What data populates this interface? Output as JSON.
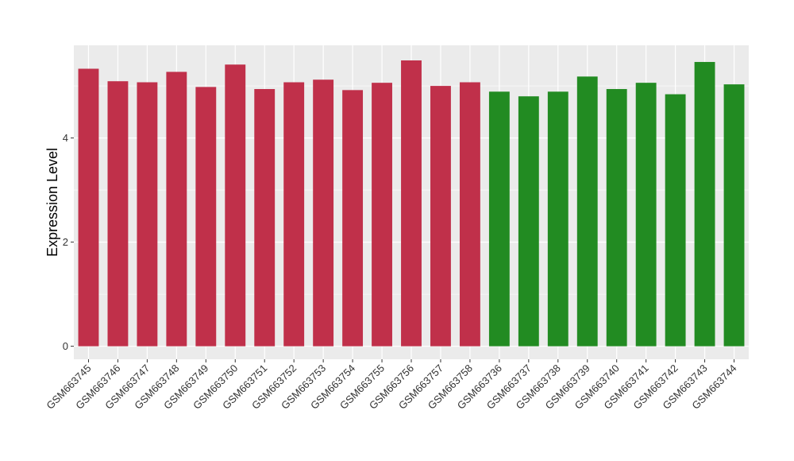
{
  "chart_data": {
    "type": "bar",
    "title": "",
    "xlabel": "",
    "ylabel": "Expression Level",
    "ylim": [
      -0.25,
      5.78
    ],
    "yticks": [
      0,
      2,
      4
    ],
    "ytick_labels": [
      "0",
      "2",
      "4"
    ],
    "grid": true,
    "categories": [
      "GSM663745",
      "GSM663746",
      "GSM663747",
      "GSM663748",
      "GSM663749",
      "GSM663750",
      "GSM663751",
      "GSM663752",
      "GSM663753",
      "GSM663754",
      "GSM663755",
      "GSM663756",
      "GSM663757",
      "GSM663758",
      "GSM663736",
      "GSM663737",
      "GSM663738",
      "GSM663739",
      "GSM663740",
      "GSM663741",
      "GSM663742",
      "GSM663743",
      "GSM663744"
    ],
    "values": [
      5.33,
      5.09,
      5.07,
      5.27,
      4.98,
      5.41,
      4.94,
      5.07,
      5.12,
      4.92,
      5.06,
      5.49,
      5.0,
      5.07,
      4.89,
      4.8,
      4.89,
      5.18,
      4.94,
      5.06,
      4.84,
      5.46,
      5.03
    ],
    "bar_colors": [
      "#c0304a",
      "#c0304a",
      "#c0304a",
      "#c0304a",
      "#c0304a",
      "#c0304a",
      "#c0304a",
      "#c0304a",
      "#c0304a",
      "#c0304a",
      "#c0304a",
      "#c0304a",
      "#c0304a",
      "#c0304a",
      "#228b22",
      "#228b22",
      "#228b22",
      "#228b22",
      "#228b22",
      "#228b22",
      "#228b22",
      "#228b22",
      "#228b22"
    ],
    "panel_background": "#ebebeb",
    "grid_color": "#ffffff"
  }
}
